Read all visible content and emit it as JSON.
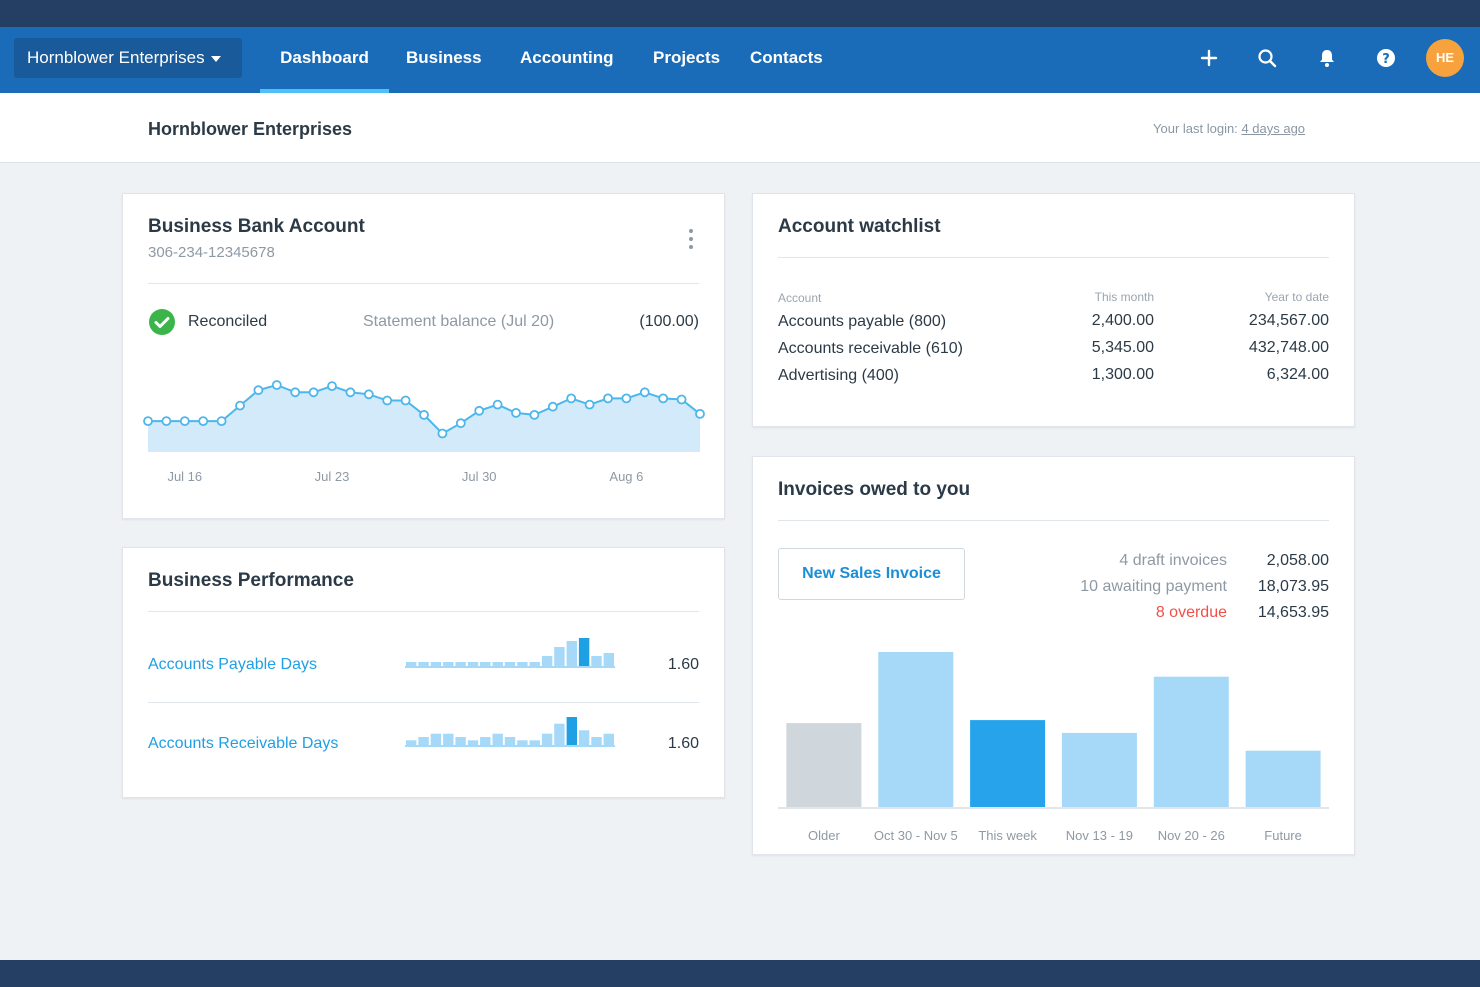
{
  "nav": {
    "org_switcher": "Hornblower Enterprises",
    "items": [
      "Dashboard",
      "Business",
      "Accounting",
      "Projects",
      "Contacts"
    ],
    "active": "Dashboard",
    "avatar_initials": "HE",
    "accent": "#1a6cb8"
  },
  "subheader": {
    "title": "Hornblower Enterprises",
    "last_login_label": "Your last login:",
    "last_login_value": "4 days ago"
  },
  "bank": {
    "title": "Business Bank Account",
    "account_number": "306-234-12345678",
    "status": "Reconciled",
    "statement_label": "Statement balance (Jul 20)",
    "statement_value": "(100.00)"
  },
  "chart_data": [
    {
      "type": "area",
      "x_tick_labels": [
        "Jul 16",
        "Jul 23",
        "Jul 30",
        "Aug 6"
      ],
      "values": [
        30,
        30,
        30,
        30,
        30,
        45,
        60,
        65,
        58,
        58,
        64,
        58,
        56,
        50,
        50,
        36,
        18,
        28,
        40,
        46,
        38,
        36,
        44,
        52,
        46,
        52,
        52,
        58,
        52,
        51,
        37
      ],
      "ylim": [
        0,
        100
      ],
      "grid": false,
      "color": "#4db6ec"
    },
    {
      "type": "bar",
      "categories": [
        "Older",
        "Oct 30 - Nov 5",
        "This week",
        "Nov 13 - 19",
        "Nov 20 - 26",
        "Future"
      ],
      "values": [
        85,
        157,
        88,
        75,
        132,
        57
      ],
      "ylim": [
        0,
        160
      ],
      "highlight_index": 2,
      "colors": [
        "#cfd6dc",
        "#a6d9f7",
        "#26a3ea",
        "#a6d9f7",
        "#a6d9f7",
        "#a6d9f7"
      ]
    }
  ],
  "watchlist": {
    "title": "Account watchlist",
    "columns": [
      "Account",
      "This month",
      "Year to date"
    ],
    "rows": [
      [
        "Accounts payable (800)",
        "2,400.00",
        "234,567.00"
      ],
      [
        "Accounts receivable (610)",
        "5,345.00",
        "432,748.00"
      ],
      [
        "Advertising (400)",
        "1,300.00",
        "6,324.00"
      ]
    ]
  },
  "performance": {
    "title": "Business Performance",
    "items": [
      {
        "label": "Accounts Payable Days",
        "value": "1.60",
        "spark": [
          2,
          2,
          2,
          2,
          2,
          2,
          2,
          2,
          2,
          2,
          2,
          4,
          7,
          9,
          10,
          4,
          5
        ]
      },
      {
        "label": "Accounts Receivable Days",
        "value": "1.60",
        "spark": [
          2,
          3,
          4,
          4,
          3,
          2,
          3,
          4,
          3,
          2,
          2,
          4,
          7,
          9,
          5,
          3,
          4
        ]
      }
    ]
  },
  "invoices": {
    "title": "Invoices owed to you",
    "new_button": "New Sales Invoice",
    "summary": [
      {
        "label": "4 draft invoices",
        "value": "2,058.00",
        "status": "normal"
      },
      {
        "label": "10 awaiting payment",
        "value": "18,073.95",
        "status": "normal"
      },
      {
        "label": "8 overdue",
        "value": "14,653.95",
        "status": "overdue"
      }
    ]
  }
}
